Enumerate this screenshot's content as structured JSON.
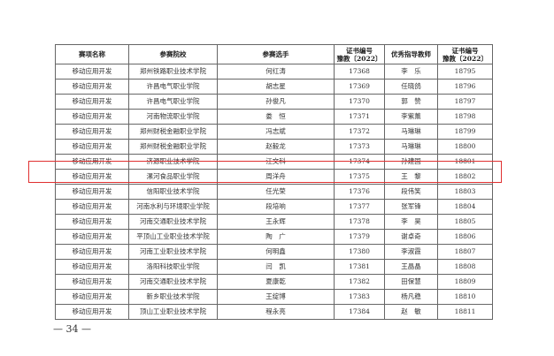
{
  "table": {
    "headers": [
      "赛项名称",
      "参赛院校",
      "参赛选手",
      "证书编号 豫教〔2022〕",
      "优秀指导教师",
      "证书编号 豫教〔2022〕"
    ],
    "rows": [
      [
        "移动应用开发",
        "郑州铁路职业技术学院",
        "何红涛",
        "17368",
        "李　乐",
        "18795"
      ],
      [
        "移动应用开发",
        "许昌电气职业学院",
        "胡志星",
        "17369",
        "任晓鸽",
        "18796"
      ],
      [
        "移动应用开发",
        "许昌电气职业学院",
        "孙俊凡",
        "17370",
        "郭　赞",
        "18797"
      ],
      [
        "移动应用开发",
        "河南物流职业学院",
        "娄　恒",
        "17371",
        "李紫薰",
        "18798"
      ],
      [
        "移动应用开发",
        "郑州财税金融职业学院",
        "冯志斌",
        "17372",
        "马琳琳",
        "18799"
      ],
      [
        "移动应用开发",
        "郑州财税金融职业学院",
        "赵毅龙",
        "17373",
        "马琳琳",
        "18800"
      ],
      [
        "移动应用开发",
        "济源职业技术学院",
        "江文科",
        "17374",
        "孙建国",
        "18801"
      ],
      [
        "移动应用开发",
        "漯河食品职业学院",
        "周洋舟",
        "17375",
        "王　黎",
        "18802"
      ],
      [
        "移动应用开发",
        "信阳职业技术学院",
        "任光荣",
        "17376",
        "段伟笑",
        "18803"
      ],
      [
        "移动应用开发",
        "河南水利与环境职业学院",
        "段培响",
        "17377",
        "张军锋",
        "18804"
      ],
      [
        "移动应用开发",
        "河南交通职业技术学院",
        "王永辉",
        "17378",
        "李　昊",
        "18805"
      ],
      [
        "移动应用开发",
        "平顶山工业职业技术学院",
        "陶　广",
        "17379",
        "谢卓奇",
        "18806"
      ],
      [
        "移动应用开发",
        "河南工业职业技术学院",
        "何明鑫",
        "17380",
        "李淑霞",
        "18807"
      ],
      [
        "移动应用开发",
        "洛阳科技职业学院",
        "闫　凯",
        "17381",
        "王晶晶",
        "18808"
      ],
      [
        "移动应用开发",
        "河南交通职业技术学院",
        "夏康乾",
        "17382",
        "田保慧",
        "18809"
      ],
      [
        "移动应用开发",
        "新乡职业技术学院",
        "王绽博",
        "17383",
        "杨凡稳",
        "18810"
      ],
      [
        "移动应用开发",
        "顶山工业职业技术学院",
        "程永亮",
        "17384",
        "赵　敏",
        "18811"
      ]
    ],
    "highlighted_row": 7,
    "highlight_color": "#e03030"
  },
  "page_number": "— 34 —"
}
